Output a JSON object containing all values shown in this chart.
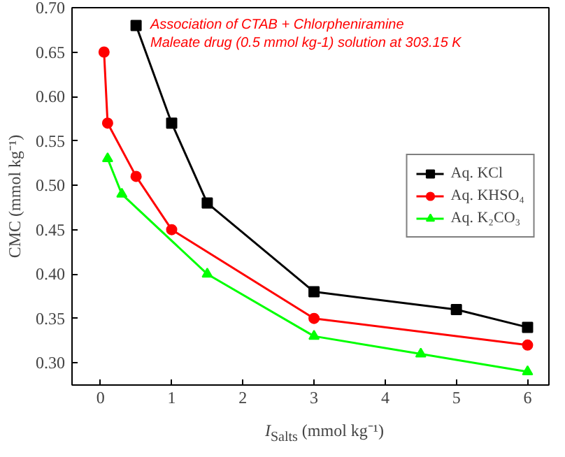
{
  "chart_data": {
    "type": "line",
    "xlabel": "I$_{Salts}$ (mmol kg⁻¹)",
    "ylabel": "CMC (mmol kg⁻¹)",
    "annotations": [
      "Association of CTAB + Chlorpheniramine",
      "Maleate drug (0.5 mmol kg-1) solution at 303.15 K"
    ],
    "series": [
      {
        "name": "Aq. KCl",
        "color": "#000000",
        "marker": "square",
        "x": [
          0.5,
          1,
          1.5,
          3,
          5,
          6
        ],
        "values": [
          0.68,
          0.57,
          0.48,
          0.38,
          0.36,
          0.34
        ]
      },
      {
        "name": "Aq. KHSO₄",
        "color": "#ff0000",
        "marker": "circle",
        "x": [
          0.05,
          0.1,
          0.5,
          1,
          3,
          6
        ],
        "values": [
          0.65,
          0.57,
          0.51,
          0.45,
          0.35,
          0.32
        ]
      },
      {
        "name": "Aq. K₂CO₃",
        "color": "#00ff00",
        "marker": "triangle",
        "x": [
          0.1,
          0.3,
          1.5,
          3,
          4.5,
          6
        ],
        "values": [
          0.53,
          0.49,
          0.4,
          0.33,
          0.31,
          0.29
        ]
      }
    ],
    "xlim": [
      -0.4,
      6.3
    ],
    "ylim": [
      0.275,
      0.7
    ],
    "xticks": [
      0,
      1,
      2,
      3,
      4,
      5,
      6
    ],
    "yticks": [
      {
        "value": 0.3,
        "label": "0.30"
      },
      {
        "value": 0.35,
        "label": "0.35"
      },
      {
        "value": 0.4,
        "label": "0.40"
      },
      {
        "value": 0.45,
        "label": "0.45"
      },
      {
        "value": 0.5,
        "label": "0.50"
      },
      {
        "value": 0.55,
        "label": "0.55"
      },
      {
        "value": 0.6,
        "label": "0.60"
      },
      {
        "value": 0.65,
        "label": "0.65"
      },
      {
        "value": 0.7,
        "label": "0.70"
      }
    ],
    "grid": false,
    "legend": "right"
  }
}
